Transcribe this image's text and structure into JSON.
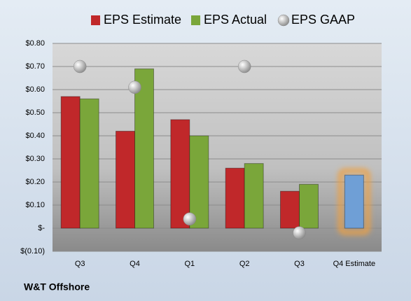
{
  "chart_data": {
    "type": "bar",
    "source": "W&T Offshore",
    "categories": [
      "Q3",
      "Q4",
      "Q1",
      "Q2",
      "Q3",
      "Q4 Estimate"
    ],
    "series": [
      {
        "name": "EPS Estimate",
        "color": "#c0282a",
        "values": [
          0.57,
          0.42,
          0.47,
          0.26,
          0.16,
          null
        ]
      },
      {
        "name": "EPS Actual",
        "color": "#7aa63a",
        "values": [
          0.56,
          0.69,
          0.4,
          0.28,
          0.19,
          null
        ]
      },
      {
        "name": "EPS GAAP",
        "color": "#a8a8a8",
        "type": "scatter",
        "values": [
          0.7,
          0.61,
          0.04,
          0.7,
          -0.02,
          null
        ]
      }
    ],
    "highlight_bar": {
      "color": "#6f9fd6",
      "glow": "#f0a040",
      "values": [
        null,
        null,
        null,
        null,
        null,
        0.23
      ]
    },
    "ylim": [
      -0.1,
      0.8
    ],
    "yticks": [
      {
        "value": -0.1,
        "label": "$(0.10)"
      },
      {
        "value": 0,
        "label": "$-"
      },
      {
        "value": 0.1,
        "label": "$0.10"
      },
      {
        "value": 0.2,
        "label": "$0.20"
      },
      {
        "value": 0.3,
        "label": "$0.30"
      },
      {
        "value": 0.4,
        "label": "$0.40"
      },
      {
        "value": 0.5,
        "label": "$0.50"
      },
      {
        "value": 0.6,
        "label": "$0.60"
      },
      {
        "value": 0.7,
        "label": "$0.70"
      },
      {
        "value": 0.8,
        "label": "$0.80"
      }
    ],
    "grid": true
  }
}
